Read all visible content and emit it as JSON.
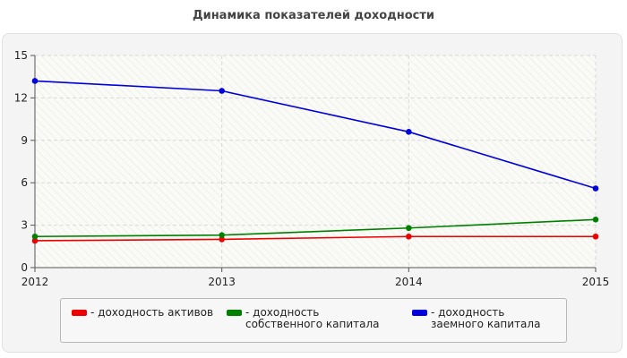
{
  "chart_data": {
    "type": "line",
    "title": "Динамика показателей доходности",
    "xlabel": "",
    "ylabel": "",
    "categories": [
      "2012",
      "2013",
      "2014",
      "2015"
    ],
    "ylim": [
      0,
      15
    ],
    "yticks": [
      0,
      3,
      6,
      9,
      12,
      15
    ],
    "grid": true,
    "legend_position": "bottom",
    "series": [
      {
        "name": "- доходность активов",
        "color": "#ee0000",
        "values": [
          1.9,
          2.0,
          2.2,
          2.2
        ]
      },
      {
        "name": "- доходность собственного капитала",
        "color": "#008000",
        "values": [
          2.2,
          2.3,
          2.8,
          3.4
        ]
      },
      {
        "name": "- доходность заемного капитала",
        "color": "#0000dd",
        "values": [
          13.2,
          12.5,
          9.6,
          5.6
        ]
      }
    ]
  }
}
